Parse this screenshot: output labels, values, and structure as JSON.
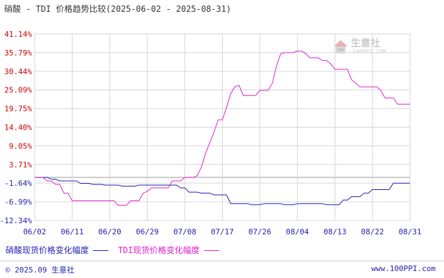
{
  "header": {
    "title": "硝酸 - TDI 价格趋势比较(2025-06-02 - 2025-08-31)"
  },
  "watermark": {
    "name": "生意社",
    "url": "100PPI.COM"
  },
  "legend": {
    "items": [
      {
        "label": "硝酸现货价格变化幅度",
        "color": "#1f1fb0"
      },
      {
        "label": "TDI现货价格变化幅度",
        "color": "#e020d0"
      }
    ]
  },
  "footer": {
    "copyright": "© 2025.09 生意社",
    "site": "www.100PPI.com"
  },
  "colors": {
    "axis_label_red": "#d00000",
    "axis_label_blue": "#1f1fb0",
    "grid": "#cccccc"
  },
  "chart_data": {
    "type": "line",
    "title": "硝酸 - TDI 价格趋势比较(2025-06-02 - 2025-08-31)",
    "yticks": [
      "41.14%",
      "35.79%",
      "30.44%",
      "25.09%",
      "19.75%",
      "14.40%",
      "9.05%",
      "3.71%",
      "-1.64%",
      "-6.99%",
      "-12.34%"
    ],
    "ytick_values": [
      41.14,
      35.79,
      30.44,
      25.09,
      19.75,
      14.4,
      9.05,
      3.71,
      -1.64,
      -6.99,
      -12.34
    ],
    "ylim": [
      -12.34,
      41.14
    ],
    "xticks": [
      "06/02",
      "06/11",
      "06/20",
      "06/29",
      "07/08",
      "07/17",
      "07/26",
      "08/04",
      "08/13",
      "08/22",
      "08/31"
    ],
    "xlim": [
      0,
      90
    ],
    "series": [
      {
        "name": "硝酸现货价格变化幅度",
        "color": "#1f1fb0",
        "points": [
          [
            0,
            0
          ],
          [
            3,
            0
          ],
          [
            4,
            -0.5
          ],
          [
            5,
            -0.5
          ],
          [
            6,
            -1
          ],
          [
            10,
            -1
          ],
          [
            11,
            -1.7
          ],
          [
            13,
            -1.7
          ],
          [
            14,
            -2
          ],
          [
            16,
            -2
          ],
          [
            17,
            -2.2
          ],
          [
            20,
            -2.2
          ],
          [
            21,
            -2.5
          ],
          [
            24,
            -2.5
          ],
          [
            25,
            -2.2
          ],
          [
            34,
            -2.2
          ],
          [
            35,
            -3
          ],
          [
            36,
            -3
          ],
          [
            37,
            -4.2
          ],
          [
            39,
            -4.2
          ],
          [
            40,
            -4.5
          ],
          [
            42,
            -4.5
          ],
          [
            43,
            -5
          ],
          [
            46,
            -5
          ],
          [
            47,
            -7.5
          ],
          [
            51,
            -7.5
          ],
          [
            52,
            -7.8
          ],
          [
            54,
            -7.8
          ],
          [
            55,
            -7.5
          ],
          [
            59,
            -7.5
          ],
          [
            60,
            -7.8
          ],
          [
            62,
            -7.8
          ],
          [
            63,
            -7.5
          ],
          [
            69,
            -7.5
          ],
          [
            70,
            -7.8
          ],
          [
            73,
            -7.8
          ],
          [
            74,
            -6.5
          ],
          [
            75,
            -6.5
          ],
          [
            76,
            -5.5
          ],
          [
            78,
            -5.5
          ],
          [
            79,
            -4.5
          ],
          [
            80,
            -4.5
          ],
          [
            81,
            -3.5
          ],
          [
            85,
            -3.5
          ],
          [
            86,
            -1.64
          ],
          [
            90,
            -1.64
          ]
        ]
      },
      {
        "name": "TDI现货价格变化幅度",
        "color": "#e020d0",
        "points": [
          [
            0,
            0
          ],
          [
            2,
            0
          ],
          [
            3,
            -1
          ],
          [
            4,
            -1
          ],
          [
            5,
            -2
          ],
          [
            6,
            -2
          ],
          [
            7,
            -4.5
          ],
          [
            8,
            -4.5
          ],
          [
            9,
            -6.7
          ],
          [
            19,
            -6.7
          ],
          [
            20,
            -8
          ],
          [
            22,
            -8
          ],
          [
            23,
            -6.7
          ],
          [
            24,
            -6.7
          ],
          [
            25,
            -6.7
          ],
          [
            26,
            -4.5
          ],
          [
            27,
            -4
          ],
          [
            28,
            -3
          ],
          [
            32,
            -3
          ],
          [
            33,
            -1
          ],
          [
            35,
            -1
          ],
          [
            36,
            0
          ],
          [
            37,
            0
          ],
          [
            38,
            0
          ],
          [
            39,
            0.5
          ],
          [
            40,
            3
          ],
          [
            41,
            7
          ],
          [
            42,
            10
          ],
          [
            43,
            13
          ],
          [
            44,
            16.5
          ],
          [
            45,
            16.5
          ],
          [
            46,
            20
          ],
          [
            47,
            24
          ],
          [
            48,
            26
          ],
          [
            49,
            26.4
          ],
          [
            50,
            23.5
          ],
          [
            53,
            23.5
          ],
          [
            54,
            25
          ],
          [
            56,
            25
          ],
          [
            57,
            27
          ],
          [
            58,
            32
          ],
          [
            59,
            35.5
          ],
          [
            60,
            35.79
          ],
          [
            62,
            35.79
          ],
          [
            63,
            36.2
          ],
          [
            64,
            36.2
          ],
          [
            65,
            35.5
          ],
          [
            66,
            34.3
          ],
          [
            68,
            34.3
          ],
          [
            69,
            33.5
          ],
          [
            70,
            33.5
          ],
          [
            71,
            32.5
          ],
          [
            72,
            31
          ],
          [
            75,
            31
          ],
          [
            76,
            28
          ],
          [
            77,
            27
          ],
          [
            78,
            26
          ],
          [
            82,
            26
          ],
          [
            83,
            25
          ],
          [
            84,
            22.8
          ],
          [
            86,
            22.8
          ],
          [
            87,
            21
          ],
          [
            90,
            21
          ]
        ]
      }
    ]
  }
}
